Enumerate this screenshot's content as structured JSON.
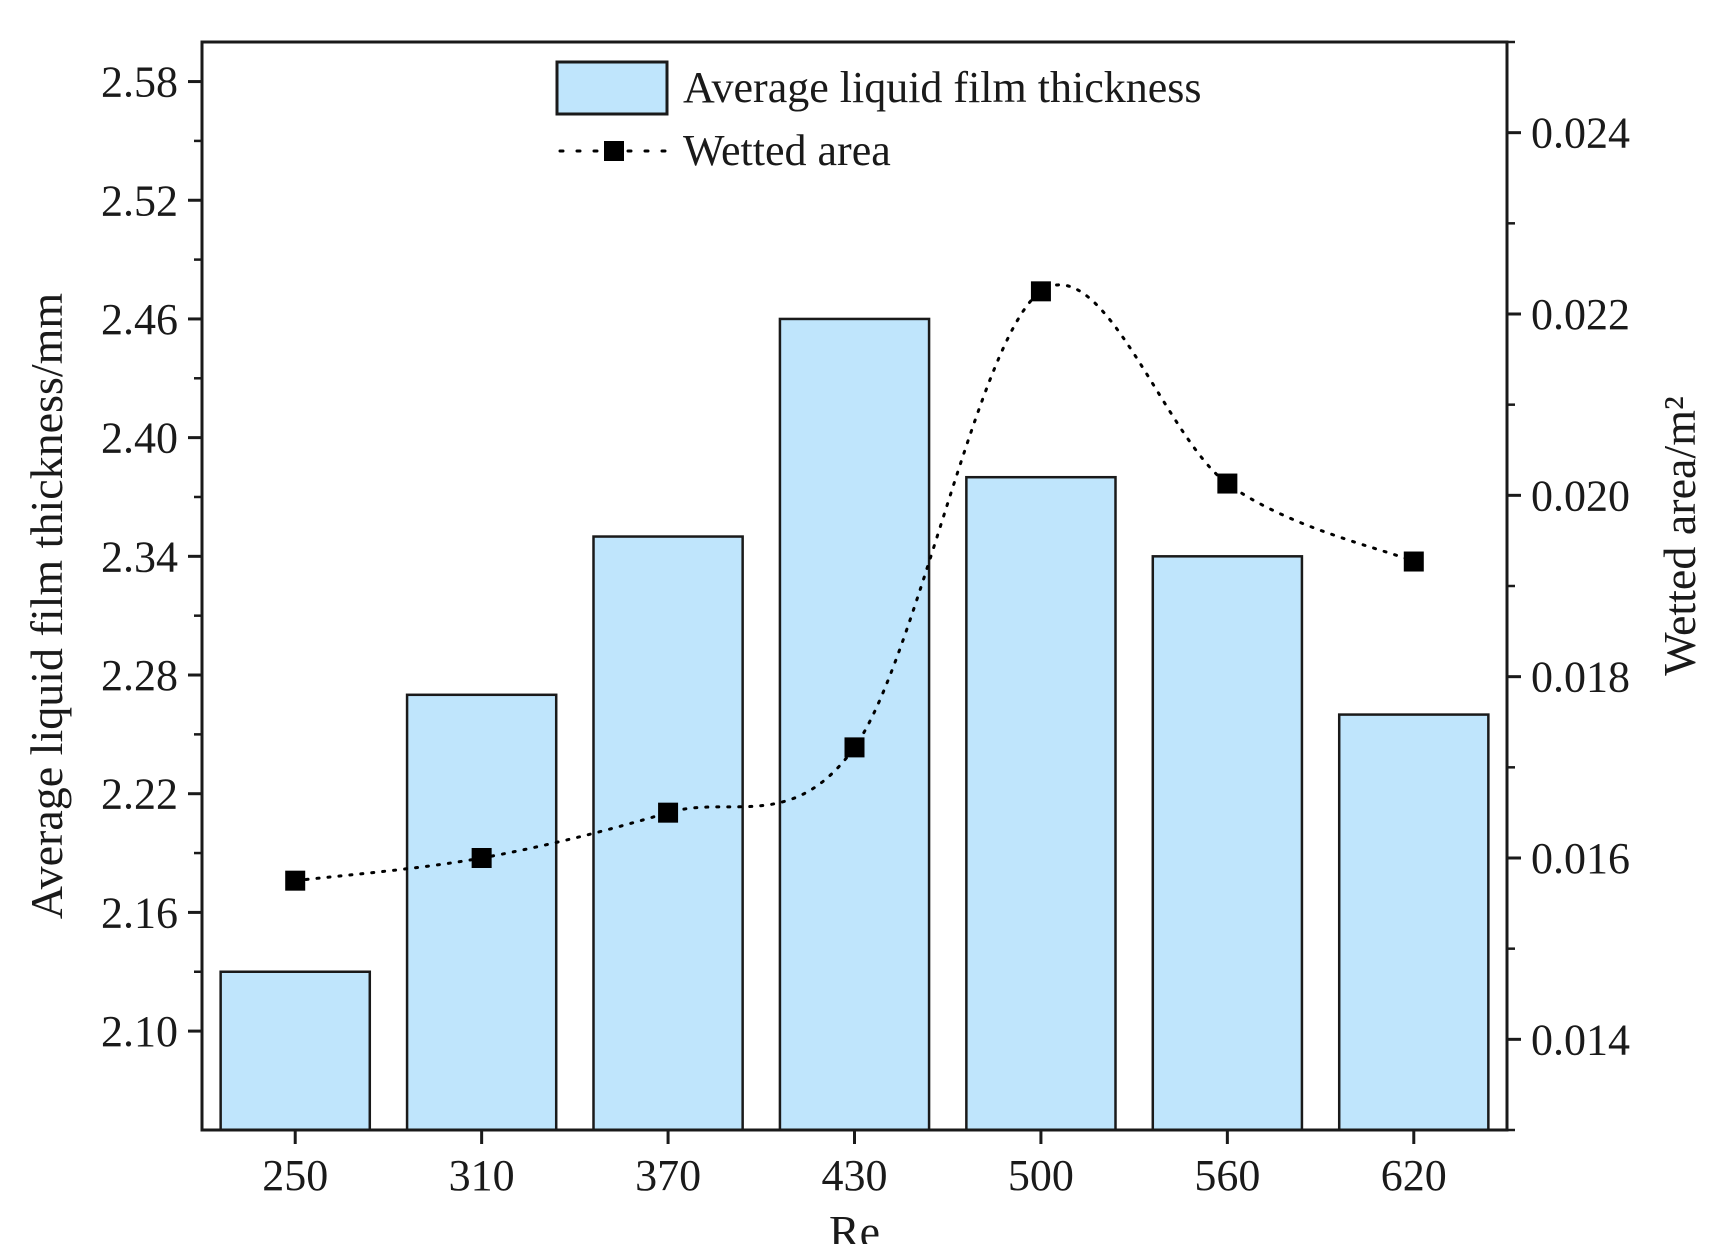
{
  "chart_data": {
    "type": "bar",
    "title": "",
    "xlabel": "Re",
    "ylabel": "Average liquid film thickness/mm",
    "y2label": "Wetted area/m²",
    "categories": [
      "250",
      "310",
      "370",
      "430",
      "500",
      "560",
      "620"
    ],
    "series": [
      {
        "name": "Average liquid film thickness",
        "type": "bar",
        "axis": "left",
        "values": [
          2.13,
          2.27,
          2.35,
          2.46,
          2.38,
          2.34,
          2.26
        ],
        "color": "#bfe5fc"
      },
      {
        "name": "Wetted area",
        "type": "line",
        "axis": "right",
        "line_style": "dotted",
        "marker": "square",
        "values": [
          0.01575,
          0.016,
          0.0165,
          0.01722,
          0.02225,
          0.02013,
          0.01927
        ],
        "color": "#000000"
      }
    ],
    "ylim": [
      2.05,
      2.6
    ],
    "yticks": [
      2.1,
      2.16,
      2.22,
      2.28,
      2.34,
      2.4,
      2.46,
      2.52,
      2.58
    ],
    "yticks_labels": [
      "2.10",
      "2.16",
      "2.22",
      "2.28",
      "2.34",
      "2.40",
      "2.46",
      "2.52",
      "2.58"
    ],
    "y2lim": [
      0.013,
      0.025
    ],
    "y2ticks": [
      0.014,
      0.016,
      0.018,
      0.02,
      0.022,
      0.024
    ],
    "y2ticks_labels": [
      "0.014",
      "0.016",
      "0.018",
      "0.020",
      "0.022",
      "0.024"
    ],
    "grid": false,
    "legend_position": "top-center"
  }
}
